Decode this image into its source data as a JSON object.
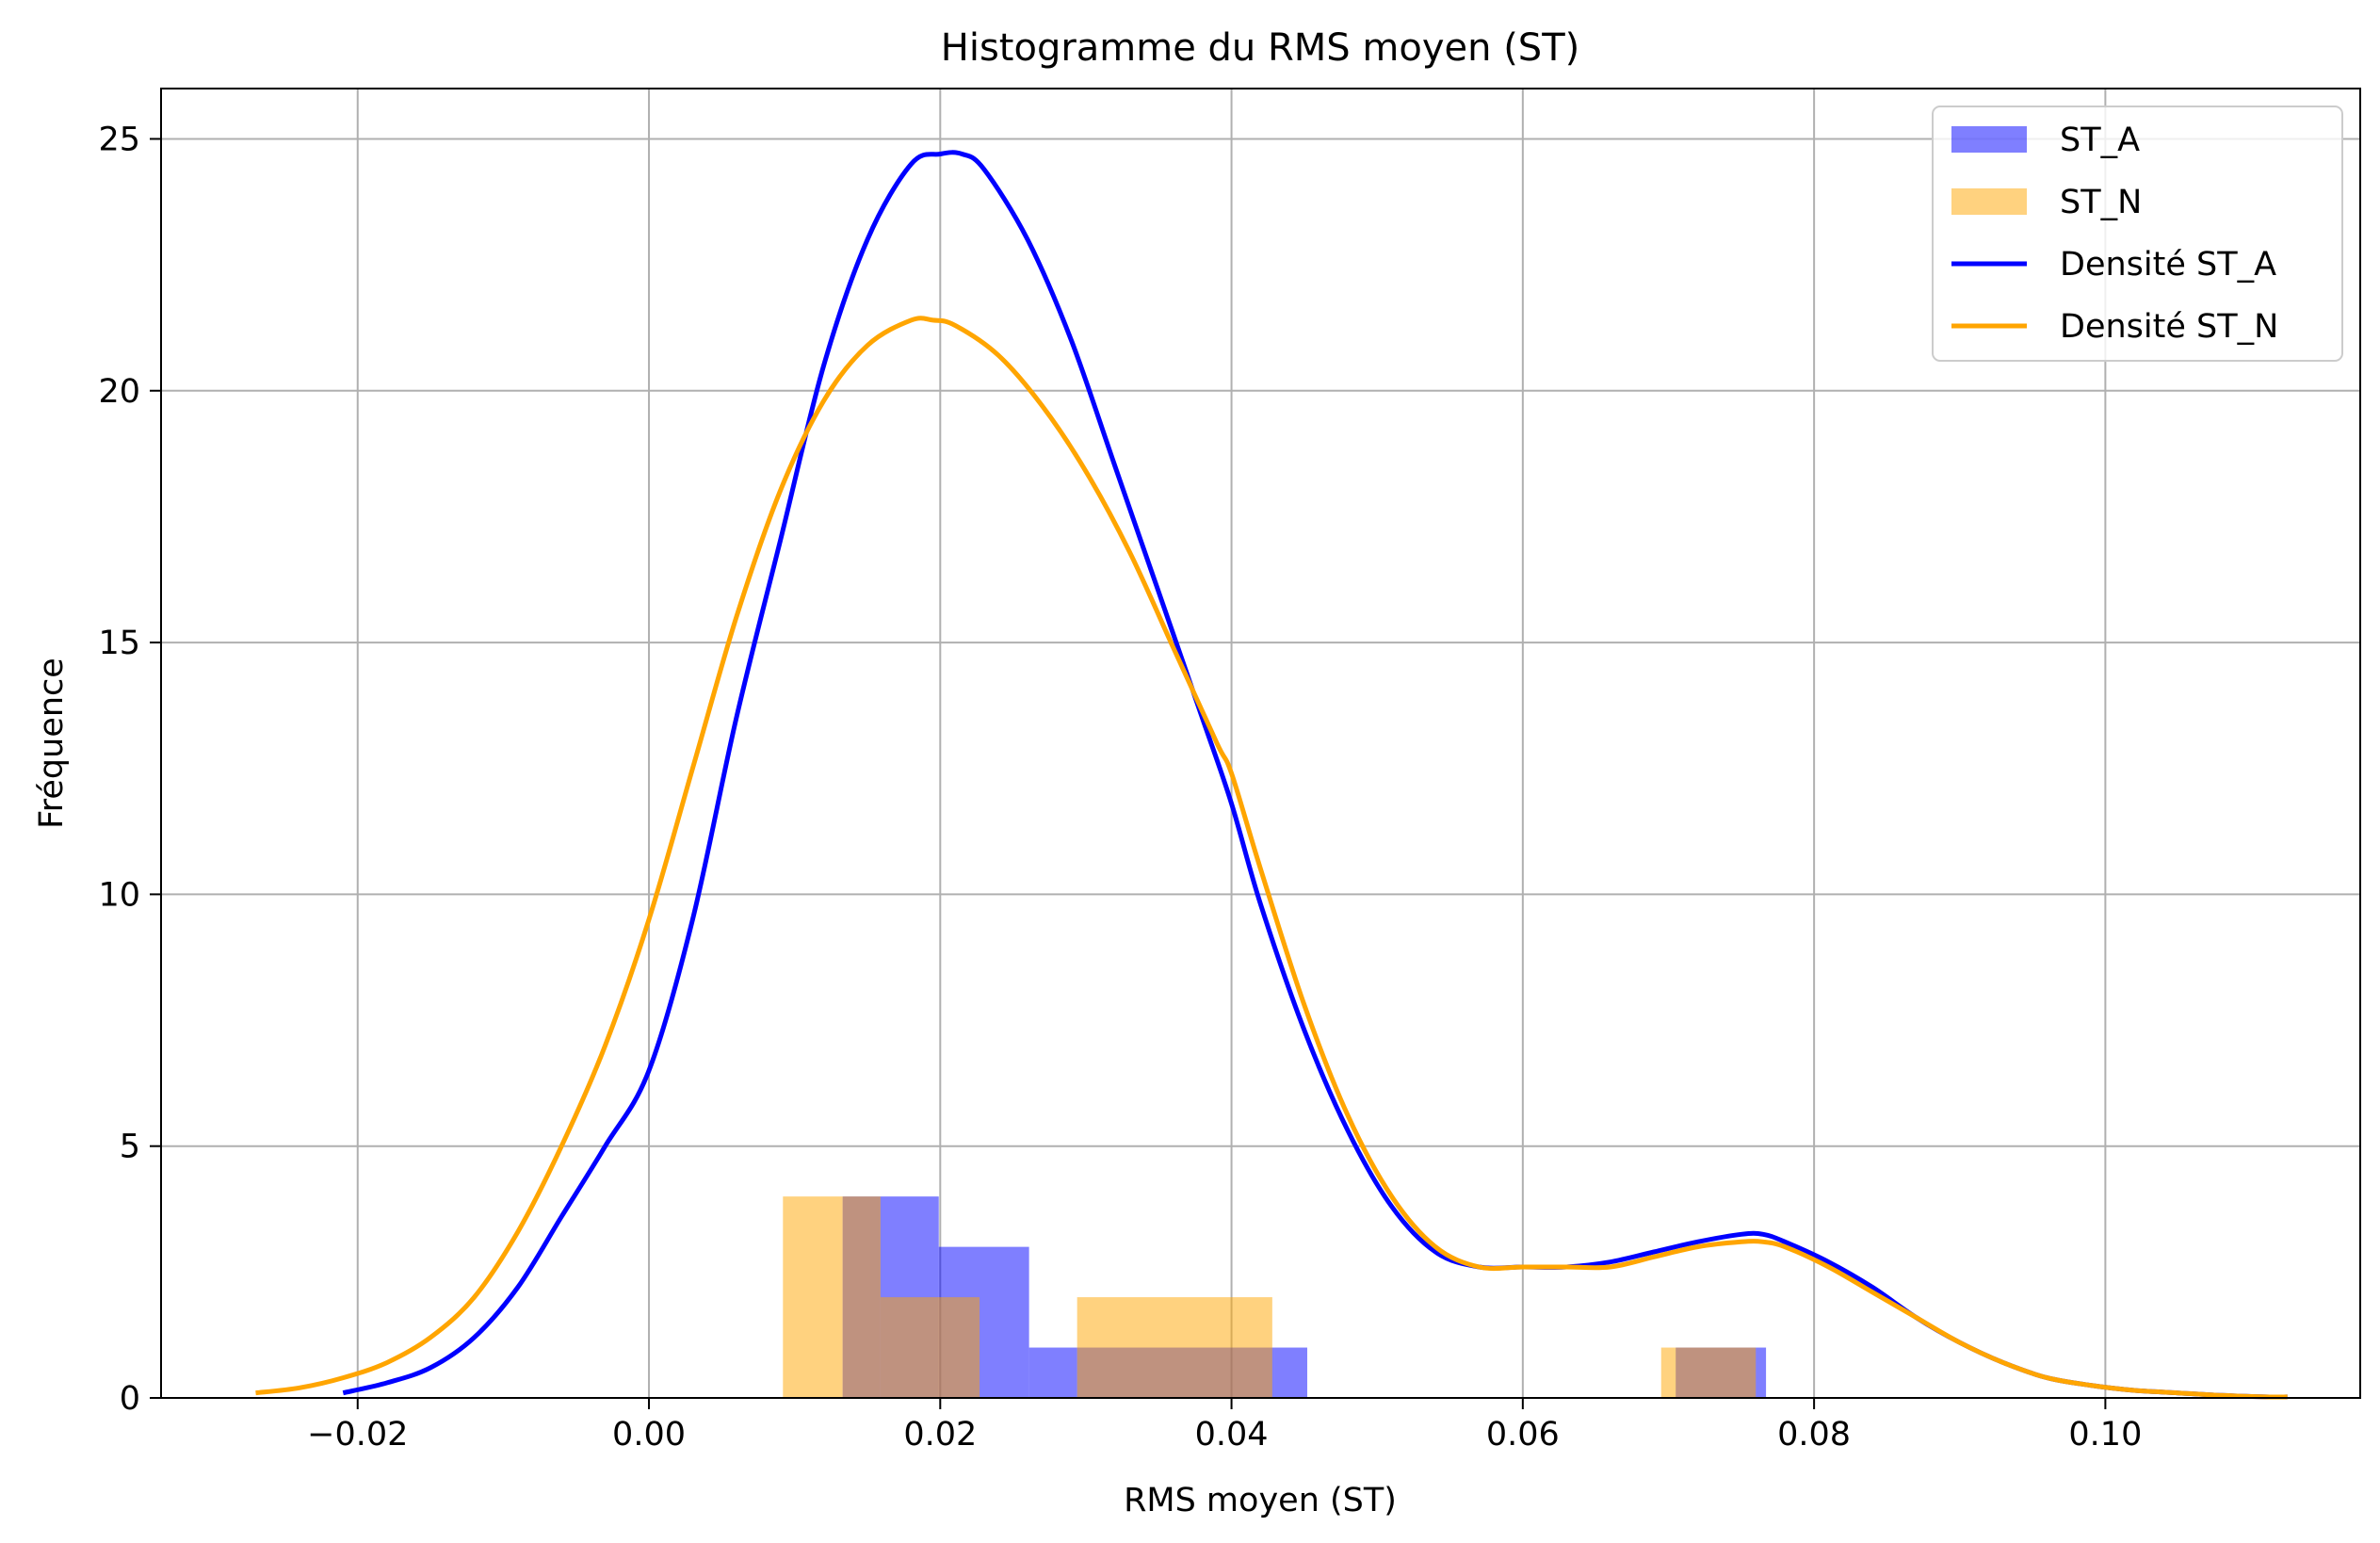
{
  "chart_data": {
    "type": "histogram",
    "title": "Histogramme du RMS moyen (ST)",
    "xlabel": "RMS moyen (ST)",
    "ylabel": "Fréquence",
    "xlim": [
      -0.0335,
      0.1175
    ],
    "ylim": [
      0,
      26
    ],
    "xticks": [
      -0.02,
      0.0,
      0.02,
      0.04,
      0.06,
      0.08,
      0.1
    ],
    "xtick_labels": [
      "−0.02",
      "0.00",
      "0.02",
      "0.04",
      "0.06",
      "0.08",
      "0.10"
    ],
    "yticks": [
      0,
      5,
      10,
      15,
      20,
      25
    ],
    "ytick_labels": [
      "0",
      "5",
      "10",
      "15",
      "20",
      "25"
    ],
    "grid": true,
    "legend_position": "top-right",
    "legend": [
      "ST_A",
      "ST_N",
      "Densité ST_A",
      "Densité ST_N"
    ],
    "histograms": [
      {
        "name": "ST_A",
        "color": "#0000ff",
        "opacity": 0.5,
        "bins": [
          {
            "x0": 0.0133,
            "x1": 0.0159,
            "count": 4
          },
          {
            "x0": 0.0159,
            "x1": 0.0199,
            "count": 4
          },
          {
            "x0": 0.0199,
            "x1": 0.0261,
            "count": 3
          },
          {
            "x0": 0.0261,
            "x1": 0.0294,
            "count": 1
          },
          {
            "x0": 0.0294,
            "x1": 0.043,
            "count": 1
          },
          {
            "x0": 0.043,
            "x1": 0.0452,
            "count": 1
          },
          {
            "x0": 0.0705,
            "x1": 0.0767,
            "count": 1
          }
        ]
      },
      {
        "name": "ST_N",
        "color": "#ffa500",
        "opacity": 0.5,
        "bins": [
          {
            "x0": 0.0092,
            "x1": 0.0133,
            "count": 4
          },
          {
            "x0": 0.0133,
            "x1": 0.0159,
            "count": 4
          },
          {
            "x0": 0.0159,
            "x1": 0.0227,
            "count": 2
          },
          {
            "x0": 0.0294,
            "x1": 0.0428,
            "count": 2
          },
          {
            "x0": 0.0695,
            "x1": 0.076,
            "count": 1
          }
        ]
      }
    ],
    "series": [
      {
        "name": "Densité ST_A",
        "color": "#0000ff",
        "x": [
          -0.021,
          -0.018,
          -0.015,
          -0.012,
          -0.009,
          -0.006,
          -0.003,
          0.0,
          0.003,
          0.006,
          0.009,
          0.012,
          0.015,
          0.018,
          0.02,
          0.0215,
          0.023,
          0.026,
          0.029,
          0.032,
          0.035,
          0.038,
          0.04,
          0.042,
          0.045,
          0.048,
          0.051,
          0.054,
          0.057,
          0.06,
          0.063,
          0.066,
          0.069,
          0.072,
          0.075,
          0.0765,
          0.078,
          0.081,
          0.084,
          0.087,
          0.09,
          0.093,
          0.096,
          0.099,
          0.102,
          0.105,
          0.108,
          0.111,
          0.1125
        ],
        "y": [
          0.1,
          0.3,
          0.6,
          1.2,
          2.2,
          3.6,
          5.0,
          6.5,
          9.5,
          13.5,
          17.0,
          20.5,
          23.0,
          24.5,
          24.7,
          24.7,
          24.4,
          23.0,
          21.0,
          18.5,
          16.0,
          13.5,
          11.8,
          9.8,
          7.3,
          5.3,
          3.8,
          2.9,
          2.6,
          2.6,
          2.6,
          2.7,
          2.9,
          3.1,
          3.25,
          3.25,
          3.1,
          2.7,
          2.2,
          1.6,
          1.1,
          0.7,
          0.4,
          0.25,
          0.15,
          0.1,
          0.05,
          0.02,
          0.02
        ]
      },
      {
        "name": "Densité ST_N",
        "color": "#ffa500",
        "x": [
          -0.027,
          -0.024,
          -0.021,
          -0.018,
          -0.015,
          -0.012,
          -0.009,
          -0.006,
          -0.003,
          0.0,
          0.003,
          0.006,
          0.009,
          0.012,
          0.015,
          0.018,
          0.0195,
          0.021,
          0.024,
          0.027,
          0.03,
          0.033,
          0.036,
          0.039,
          0.04,
          0.042,
          0.045,
          0.048,
          0.051,
          0.054,
          0.057,
          0.06,
          0.063,
          0.066,
          0.069,
          0.072,
          0.075,
          0.0765,
          0.078,
          0.081,
          0.084,
          0.087,
          0.09,
          0.093,
          0.096,
          0.099,
          0.102,
          0.105,
          0.108,
          0.111,
          0.1125
        ],
        "y": [
          0.1,
          0.2,
          0.4,
          0.7,
          1.2,
          2.0,
          3.3,
          5.0,
          7.0,
          9.5,
          12.5,
          15.5,
          18.0,
          19.8,
          20.9,
          21.4,
          21.4,
          21.3,
          20.7,
          19.7,
          18.4,
          16.8,
          14.9,
          13.0,
          12.4,
          10.5,
          7.8,
          5.6,
          4.0,
          3.0,
          2.6,
          2.6,
          2.6,
          2.6,
          2.8,
          3.0,
          3.1,
          3.1,
          3.0,
          2.6,
          2.1,
          1.6,
          1.1,
          0.7,
          0.4,
          0.25,
          0.15,
          0.1,
          0.05,
          0.02,
          0.02
        ]
      }
    ]
  }
}
